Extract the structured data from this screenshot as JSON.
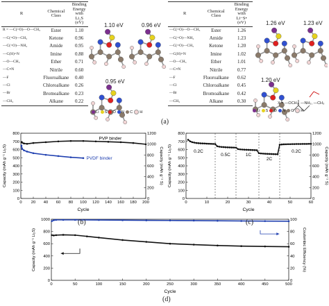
{
  "tableLeft": {
    "headers": [
      "R",
      "Chemical Class",
      "Binding Energy with Li₂S (eV)"
    ],
    "rows": [
      {
        "struct": "R = ―C(=O)―O―CH₃",
        "cls": "Ester",
        "val": "1.10"
      },
      {
        "struct": "―C(=O)―CH₃",
        "cls": "Ketone",
        "val": "0.96"
      },
      {
        "struct": "―C(=O)―NH₂",
        "cls": "Amide",
        "val": "0.95"
      },
      {
        "struct": "―C(H)=N",
        "cls": "Imine",
        "val": "0.88"
      },
      {
        "struct": "―O―CH₃",
        "cls": "Ether",
        "val": "0.71"
      },
      {
        "struct": "―C≡N",
        "cls": "Nitrile",
        "val": "0.60"
      },
      {
        "struct": "―F",
        "cls": "Fluoroalkane",
        "val": "0.40"
      },
      {
        "struct": "―Cl",
        "cls": "Chloroalkane",
        "val": "0.26"
      },
      {
        "struct": "―Br",
        "cls": "Bromoalkane",
        "val": "0.23"
      },
      {
        "struct": "―CH₃",
        "cls": "Alkane",
        "val": "0.22"
      }
    ]
  },
  "tableRight": {
    "headers": [
      "R",
      "Chemical Class",
      "Binding Energy with Li−S• (eV)"
    ],
    "rows": [
      {
        "struct": "―C(=O)―O―CH₃",
        "cls": "Ester",
        "val": "1.26"
      },
      {
        "struct": "―C(=O)―NH₂",
        "cls": "Amide",
        "val": "1.23"
      },
      {
        "struct": "―C(=O)―CH₃",
        "cls": "Ketone",
        "val": "1.20"
      },
      {
        "struct": "―C(H)=N",
        "cls": "Imine",
        "val": "1.02"
      },
      {
        "struct": "―O―CH₃",
        "cls": "Ether",
        "val": "1.01"
      },
      {
        "struct": "―C≡N",
        "cls": "Nitrile",
        "val": "0.77"
      },
      {
        "struct": "―F",
        "cls": "Fluoroalkane",
        "val": "0.62"
      },
      {
        "struct": "―Cl",
        "cls": "Chloroalkane",
        "val": "0.45"
      },
      {
        "struct": "―Br",
        "cls": "Bromoalkane",
        "val": "0.42"
      },
      {
        "struct": "―CH₃",
        "cls": "Alkane",
        "val": "0.30"
      }
    ]
  },
  "molecules": {
    "e1": "1.10 eV",
    "e2": "0.96 eV",
    "e3": "0.95 eV",
    "e4": "1.26 eV",
    "e5": "1.23 eV",
    "e6": "1.20 eV",
    "legendLeft": [
      "Li",
      "S",
      "O",
      "N",
      "C",
      "H"
    ],
    "legendRight": [
      "Li",
      "S",
      "O",
      "N",
      "C",
      "H"
    ],
    "xlabel": "X = ―OCH₃, ―NH₂, ―CH₃",
    "colors": {
      "Li": "#7b2f8e",
      "S": "#e6d21e",
      "O": "#e02020",
      "N": "#3050d0",
      "C": "#8a7a6a",
      "H": "#f2d5d5"
    }
  },
  "captions": {
    "a": "(a)",
    "b": "(b)",
    "c": "(c)",
    "d": "(d)"
  },
  "chart_data": [
    {
      "type": "scatter",
      "panel": "b",
      "xlabel": "Cycle",
      "ylabel": "Capacity (mAh g⁻¹ Li₂S)",
      "ylabel2": "Capacity (mAh g⁻¹ S)",
      "xlim": [
        0,
        200
      ],
      "ylim": [
        0,
        800
      ],
      "ylim2": [
        0,
        1200
      ],
      "xticks": [
        0,
        20,
        40,
        60,
        80,
        100,
        120,
        140,
        160,
        180,
        200
      ],
      "yticks": [
        0,
        100,
        200,
        300,
        400,
        500,
        600,
        700,
        800
      ],
      "yticks2": [
        0,
        200,
        400,
        600,
        800,
        1000,
        1200
      ],
      "series": [
        {
          "name": "PVP binder",
          "color": "#111111",
          "x": [
            1,
            2,
            5,
            10,
            20,
            40,
            60,
            80,
            100,
            120,
            140,
            160,
            180,
            200
          ],
          "y": [
            690,
            685,
            675,
            670,
            680,
            690,
            700,
            705,
            705,
            700,
            695,
            690,
            680,
            665
          ]
        },
        {
          "name": "PVDF binder",
          "color": "#2040b0",
          "x": [
            1,
            2,
            5,
            10,
            20,
            40,
            60,
            80,
            100
          ],
          "y": [
            650,
            610,
            590,
            575,
            555,
            535,
            520,
            505,
            495
          ]
        }
      ]
    },
    {
      "type": "scatter",
      "panel": "c",
      "xlabel": "Cycle",
      "ylabel": "Capacity (mAh g⁻¹ Li₂S)",
      "ylabel2": "Capacity (mAh g⁻¹ S)",
      "xlim": [
        0,
        60
      ],
      "ylim": [
        0,
        800
      ],
      "ylim2": [
        0,
        1200
      ],
      "xticks": [
        0,
        10,
        20,
        30,
        40,
        50,
        60
      ],
      "yticks": [
        0,
        100,
        200,
        300,
        400,
        500,
        600,
        700,
        800
      ],
      "yticks2": [
        0,
        200,
        400,
        600,
        800,
        1000,
        1200
      ],
      "rates": [
        "0.2C",
        "0.5C",
        "1C",
        "2C",
        "0.2C"
      ],
      "dividers": [
        14,
        24,
        35,
        45
      ],
      "series": [
        {
          "name": "rate",
          "color": "#111111",
          "x": [
            1,
            2,
            3,
            4,
            5,
            6,
            7,
            8,
            9,
            10,
            11,
            12,
            13,
            14,
            15,
            16,
            17,
            18,
            19,
            20,
            21,
            22,
            23,
            24,
            25,
            26,
            27,
            28,
            29,
            30,
            31,
            32,
            33,
            34,
            35,
            36,
            37,
            38,
            39,
            40,
            41,
            42,
            43,
            44,
            45,
            46,
            47,
            48,
            49,
            50,
            51,
            52,
            53,
            54,
            55,
            56,
            57,
            58,
            59,
            60
          ],
          "y": [
            720,
            700,
            690,
            685,
            680,
            678,
            676,
            675,
            674,
            672,
            671,
            670,
            669,
            668,
            640,
            635,
            632,
            630,
            628,
            627,
            626,
            625,
            624,
            623,
            605,
            602,
            600,
            598,
            597,
            596,
            595,
            594,
            593,
            592,
            555,
            552,
            550,
            548,
            547,
            546,
            545,
            544,
            543,
            542,
            660,
            662,
            664,
            665,
            666,
            666,
            667,
            667,
            668,
            668,
            668,
            669,
            669,
            669,
            670,
            670
          ]
        }
      ]
    },
    {
      "type": "scatter",
      "panel": "d",
      "xlabel": "Cycle",
      "ylabel": "Capacity (mAh g⁻¹ Li₂S)",
      "ylabel2": "Coulombic Efficiency (%)",
      "xlim": [
        0,
        500
      ],
      "ylim": [
        0,
        1000
      ],
      "ylim2": [
        0,
        100
      ],
      "xticks": [
        0,
        50,
        100,
        150,
        200,
        250,
        300,
        350,
        400,
        450,
        500
      ],
      "yticks": [
        0,
        200,
        400,
        600,
        800,
        1000
      ],
      "yticks2": [
        0,
        20,
        40,
        60,
        80,
        100
      ],
      "series": [
        {
          "name": "Capacity",
          "color": "#111111",
          "axis": "left",
          "x": [
            1,
            5,
            10,
            25,
            50,
            75,
            100,
            150,
            200,
            250,
            300,
            350,
            400,
            450,
            500
          ],
          "y": [
            740,
            735,
            740,
            745,
            740,
            720,
            700,
            660,
            630,
            600,
            585,
            570,
            560,
            555,
            550
          ]
        },
        {
          "name": "Coulombic Efficiency",
          "color": "#2040b0",
          "axis": "right",
          "x": [
            1,
            5,
            10,
            25,
            50,
            100,
            150,
            200,
            250,
            300,
            350,
            400,
            450,
            500
          ],
          "y": [
            97,
            98.5,
            99,
            99,
            99,
            98.8,
            98.5,
            98.2,
            98,
            97.8,
            97.5,
            97.2,
            97,
            96.8
          ]
        }
      ]
    }
  ]
}
